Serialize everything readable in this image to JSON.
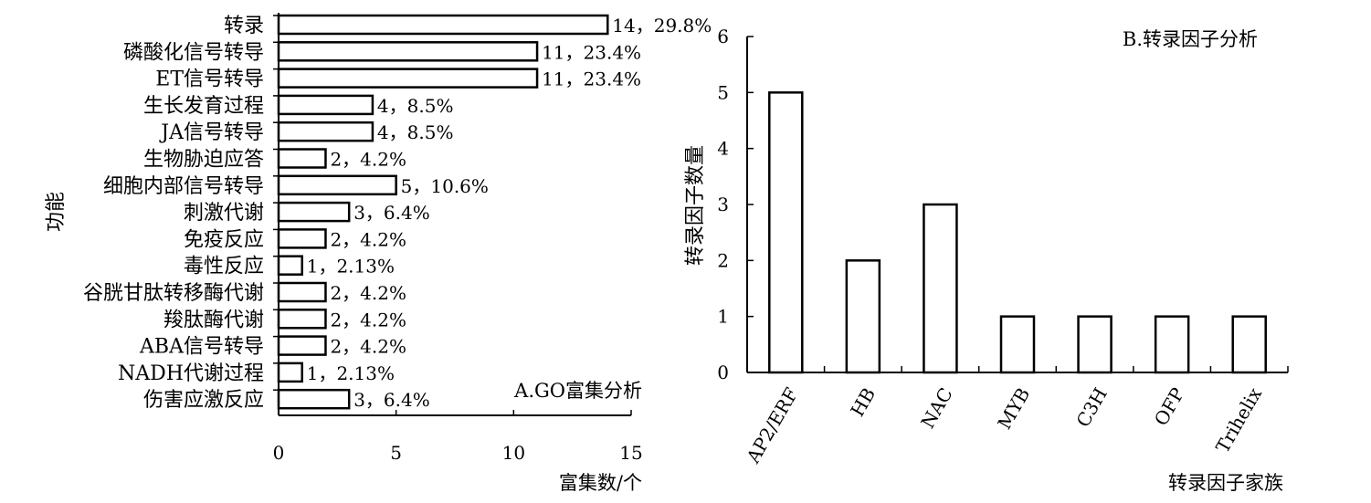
{
  "chart_data": [
    {
      "type": "bar",
      "orientation": "horizontal",
      "title": "A.GO富集分析",
      "xlabel": "富集数/个",
      "ylabel": "功能",
      "xlim": [
        0,
        15
      ],
      "xticks": [
        "0",
        "5",
        "10",
        "15"
      ],
      "categories": [
        "转录",
        "磷酸化信号转导",
        "ET信号转导",
        "生长发育过程",
        "JA信号转导",
        "生物胁迫应答",
        "细胞内部信号转导",
        "刺激代谢",
        "免疫反应",
        "毒性反应",
        "谷胱甘肽转移酶代谢",
        "羧肽酶代谢",
        "ABA信号转导",
        "NADH代谢过程",
        "伤害应激反应"
      ],
      "values": [
        14,
        11,
        11,
        4,
        4,
        2,
        5,
        3,
        2,
        1,
        2,
        2,
        2,
        1,
        3
      ],
      "data_labels": [
        "14，29.8%",
        "11，23.4%",
        "11，23.4%",
        "4，8.5%",
        "4，8.5%",
        "2，4.2%",
        "5，10.6%",
        "3，6.4%",
        "2，4.2%",
        "1，2.13%",
        "2，4.2%",
        "2，4.2%",
        "2，4.2%",
        "1，2.13%",
        "3，6.4%"
      ],
      "grid": false,
      "legend": "none"
    },
    {
      "type": "bar",
      "title": "B.转录因子分析",
      "xlabel": "转录因子家族",
      "ylabel": "转录因子数量",
      "ylim": [
        0,
        6
      ],
      "yticks": [
        "0",
        "1",
        "2",
        "3",
        "4",
        "5",
        "6"
      ],
      "categories": [
        "AP2/ERF",
        "HB",
        "NAC",
        "MYB",
        "C3H",
        "OFP",
        "Trihelix"
      ],
      "values": [
        5,
        2,
        3,
        1,
        1,
        1,
        1
      ],
      "grid": false,
      "legend": "none"
    }
  ]
}
